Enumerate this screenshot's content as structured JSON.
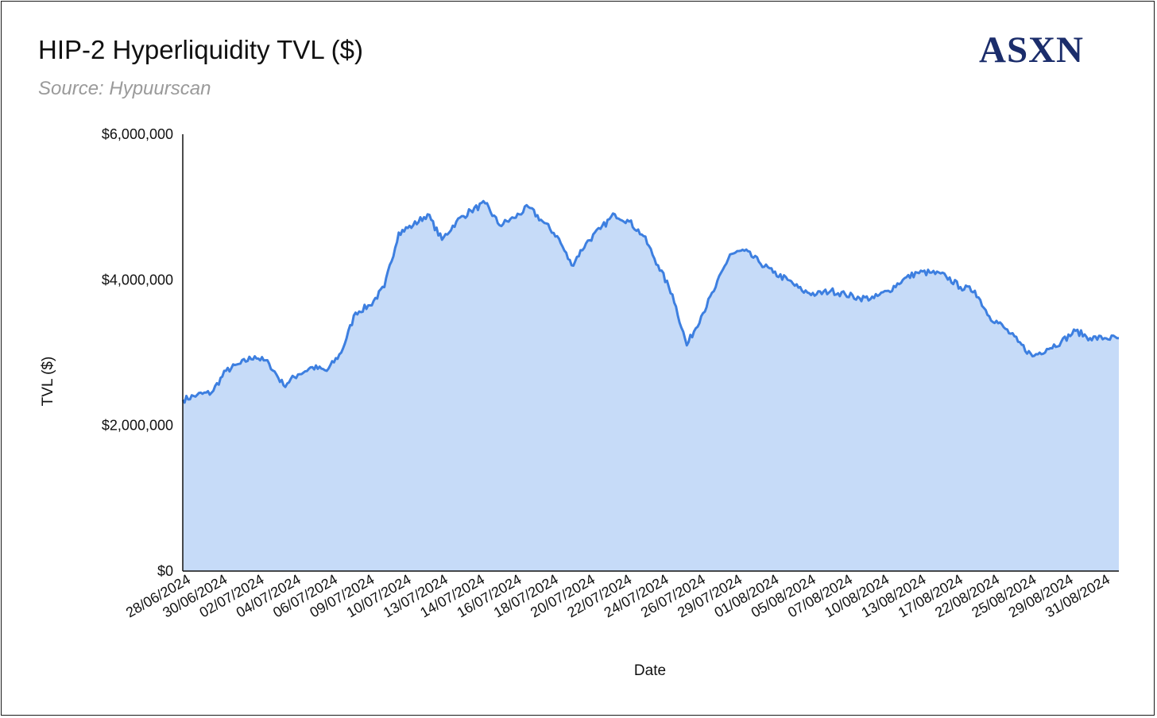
{
  "header": {
    "title": "HIP-2 Hyperliquidity TVL ($)",
    "subtitle": "Source: Hypuurscan",
    "brand": "ASXN"
  },
  "colors": {
    "line": "#3d7fe0",
    "fill": "#c6dbf8",
    "brand": "#1b2d6b",
    "subtitle": "#9a9a9a"
  },
  "chart_data": {
    "type": "area",
    "title": "HIP-2 Hyperliquidity TVL ($)",
    "subtitle": "Source: Hypuurscan",
    "xlabel": "Date",
    "ylabel": "TVL ($)",
    "ylim": [
      0,
      6000000
    ],
    "y_ticks": [
      0,
      2000000,
      4000000,
      6000000
    ],
    "y_tick_labels": [
      "$0",
      "$2,000,000",
      "$4,000,000",
      "$6,000,000"
    ],
    "x_range": [
      "2024-06-28",
      "2024-09-01"
    ],
    "x_tick_labels": [
      "28/06/2024",
      "30/06/2024",
      "02/07/2024",
      "04/07/2024",
      "06/07/2024",
      "09/07/2024",
      "10/07/2024",
      "13/07/2024",
      "14/07/2024",
      "16/07/2024",
      "18/07/2024",
      "20/07/2024",
      "22/07/2024",
      "24/07/2024",
      "26/07/2024",
      "29/07/2024",
      "01/08/2024",
      "05/08/2024",
      "07/08/2024",
      "10/08/2024",
      "13/08/2024",
      "17/08/2024",
      "22/08/2024",
      "25/08/2024",
      "29/08/2024",
      "31/08/2024"
    ],
    "grid": false,
    "legend": "none",
    "series": [
      {
        "points": [
          [
            "2024-06-28",
            2350000
          ],
          [
            "2024-06-29",
            2420000
          ],
          [
            "2024-06-30",
            2450000
          ],
          [
            "2024-07-01",
            2750000
          ],
          [
            "2024-07-02",
            2850000
          ],
          [
            "2024-07-03",
            2950000
          ],
          [
            "2024-07-04",
            2850000
          ],
          [
            "2024-07-05",
            2550000
          ],
          [
            "2024-07-06",
            2700000
          ],
          [
            "2024-07-07",
            2800000
          ],
          [
            "2024-07-08",
            2750000
          ],
          [
            "2024-07-09",
            3000000
          ],
          [
            "2024-07-10",
            3550000
          ],
          [
            "2024-07-11",
            3650000
          ],
          [
            "2024-07-12",
            3900000
          ],
          [
            "2024-07-13",
            4650000
          ],
          [
            "2024-07-14",
            4750000
          ],
          [
            "2024-07-15",
            4900000
          ],
          [
            "2024-07-16",
            4550000
          ],
          [
            "2024-07-17",
            4800000
          ],
          [
            "2024-07-18",
            4950000
          ],
          [
            "2024-07-19",
            5050000
          ],
          [
            "2024-07-20",
            4750000
          ],
          [
            "2024-07-21",
            4850000
          ],
          [
            "2024-07-22",
            5000000
          ],
          [
            "2024-07-23",
            4800000
          ],
          [
            "2024-07-24",
            4600000
          ],
          [
            "2024-07-25",
            4200000
          ],
          [
            "2024-07-26",
            4500000
          ],
          [
            "2024-07-27",
            4700000
          ],
          [
            "2024-07-28",
            4900000
          ],
          [
            "2024-07-29",
            4800000
          ],
          [
            "2024-07-30",
            4600000
          ],
          [
            "2024-07-31",
            4200000
          ],
          [
            "2024-08-01",
            3800000
          ],
          [
            "2024-08-02",
            3100000
          ],
          [
            "2024-08-03",
            3500000
          ],
          [
            "2024-08-04",
            3900000
          ],
          [
            "2024-08-05",
            4350000
          ],
          [
            "2024-08-06",
            4400000
          ],
          [
            "2024-08-07",
            4250000
          ],
          [
            "2024-08-08",
            4100000
          ],
          [
            "2024-08-09",
            4000000
          ],
          [
            "2024-08-10",
            3850000
          ],
          [
            "2024-08-11",
            3800000
          ],
          [
            "2024-08-12",
            3850000
          ],
          [
            "2024-08-13",
            3800000
          ],
          [
            "2024-08-14",
            3750000
          ],
          [
            "2024-08-15",
            3750000
          ],
          [
            "2024-08-16",
            3850000
          ],
          [
            "2024-08-17",
            4000000
          ],
          [
            "2024-08-18",
            4100000
          ],
          [
            "2024-08-19",
            4100000
          ],
          [
            "2024-08-20",
            4050000
          ],
          [
            "2024-08-21",
            3900000
          ],
          [
            "2024-08-22",
            3850000
          ],
          [
            "2024-08-23",
            3500000
          ],
          [
            "2024-08-24",
            3350000
          ],
          [
            "2024-08-25",
            3150000
          ],
          [
            "2024-08-26",
            2950000
          ],
          [
            "2024-08-27",
            3050000
          ],
          [
            "2024-08-28",
            3150000
          ],
          [
            "2024-08-29",
            3300000
          ],
          [
            "2024-08-30",
            3200000
          ],
          [
            "2024-08-31",
            3200000
          ],
          [
            "2024-09-01",
            3200000
          ]
        ]
      }
    ]
  }
}
